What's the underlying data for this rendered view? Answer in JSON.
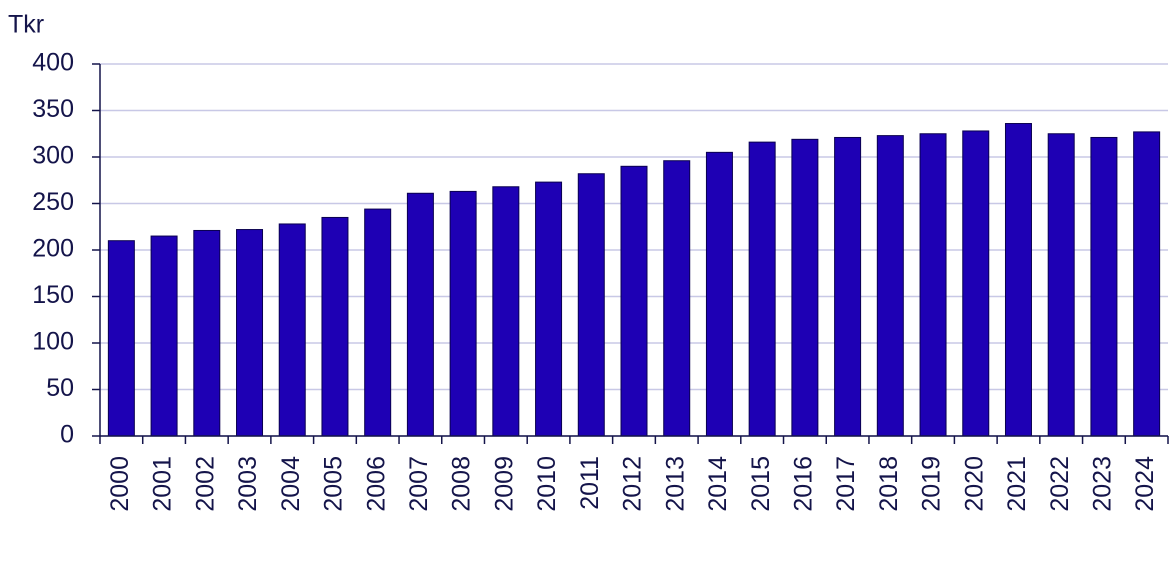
{
  "chart_data": {
    "type": "bar",
    "y_label": "Tkr",
    "categories": [
      "2000",
      "2001",
      "2002",
      "2003",
      "2004",
      "2005",
      "2006",
      "2007",
      "2008",
      "2009",
      "2010",
      "2011",
      "2012",
      "2013",
      "2014",
      "2015",
      "2016",
      "2017",
      "2018",
      "2019",
      "2020",
      "2021",
      "2022",
      "2023",
      "2024"
    ],
    "values": [
      210,
      215,
      221,
      222,
      228,
      235,
      244,
      261,
      263,
      268,
      273,
      282,
      290,
      296,
      305,
      316,
      319,
      321,
      323,
      325,
      328,
      336,
      325,
      321,
      327
    ],
    "color": "#1e00b4",
    "ylim": [
      0,
      400
    ],
    "yticks": [
      0,
      50,
      100,
      150,
      200,
      250,
      300,
      350,
      400
    ],
    "grid": true
  }
}
